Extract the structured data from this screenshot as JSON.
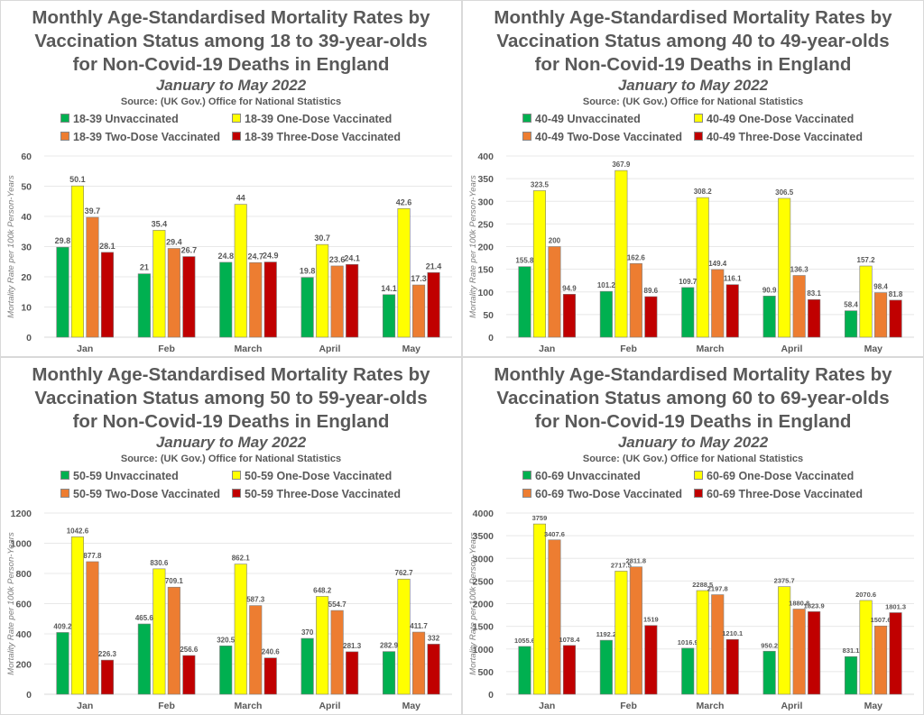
{
  "page": {
    "subtitle": "January to May 2022",
    "source": "Source: (UK Gov.) Office for National Statistics",
    "colors": {
      "unvaccinated": "#00b050",
      "one_dose": "#ffff00",
      "two_dose": "#ed7d31",
      "three_dose": "#c00000",
      "text": "#595959",
      "grid": "#e8e8e8"
    }
  },
  "chart_data": [
    {
      "type": "bar",
      "title": "Monthly Age-Standardised Mortality Rates by Vaccination Status among 18 to 39-year-olds for Non-Covid-19 Deaths in England",
      "title_lines": [
        "Monthly Age-Standardised Mortality Rates by",
        "Vaccination Status among 18 to 39-year-olds",
        "for Non-Covid-19 Deaths in England"
      ],
      "subtitle": "January to May 2022",
      "source": "Source: (UK Gov.) Office for National Statistics",
      "xlabel": "",
      "ylabel": "Mortality Rate per 100k Person-Years",
      "ylim": [
        0,
        60
      ],
      "yticks": [
        0,
        10,
        20,
        30,
        40,
        50,
        60
      ],
      "grid": true,
      "legend_position": "top",
      "categories": [
        "Jan",
        "Feb",
        "March",
        "April",
        "May"
      ],
      "series": [
        {
          "name": "18-39 Unvaccinated",
          "color": "#00b050",
          "values": [
            29.8,
            21,
            24.8,
            19.8,
            14.1
          ]
        },
        {
          "name": "18-39 One-Dose Vaccinated",
          "color": "#ffff00",
          "values": [
            50.1,
            35.4,
            44,
            30.7,
            42.6
          ]
        },
        {
          "name": "18-39 Two-Dose Vaccinated",
          "color": "#ed7d31",
          "values": [
            39.7,
            29.4,
            24.7,
            23.6,
            17.3
          ]
        },
        {
          "name": "18-39 Three-Dose Vaccinated",
          "color": "#c00000",
          "values": [
            28.1,
            26.7,
            24.9,
            24.1,
            21.4
          ]
        }
      ]
    },
    {
      "type": "bar",
      "title": "Monthly Age-Standardised Mortality Rates by Vaccination Status among 40 to 49-year-olds for Non-Covid-19 Deaths in England",
      "title_lines": [
        "Monthly Age-Standardised Mortality Rates by",
        "Vaccination Status among 40 to 49-year-olds",
        "for Non-Covid-19 Deaths in England"
      ],
      "subtitle": "January to May 2022",
      "source": "Source: (UK Gov.) Office for National Statistics",
      "xlabel": "",
      "ylabel": "Mortality Rate per 100k Person-Years",
      "ylim": [
        0,
        400
      ],
      "yticks": [
        0,
        50,
        100,
        150,
        200,
        250,
        300,
        350,
        400
      ],
      "grid": true,
      "legend_position": "top",
      "categories": [
        "Jan",
        "Feb",
        "March",
        "April",
        "May"
      ],
      "series": [
        {
          "name": "40-49 Unvaccinated",
          "color": "#00b050",
          "values": [
            155.8,
            101.2,
            109.7,
            90.9,
            58.4
          ]
        },
        {
          "name": "40-49 One-Dose Vaccinated",
          "color": "#ffff00",
          "values": [
            323.5,
            367.9,
            308.2,
            306.5,
            157.2
          ]
        },
        {
          "name": "40-49 Two-Dose Vaccinated",
          "color": "#ed7d31",
          "values": [
            200,
            162.6,
            149.4,
            136.3,
            98.4
          ]
        },
        {
          "name": "40-49 Three-Dose Vaccinated",
          "color": "#c00000",
          "values": [
            94.9,
            89.6,
            116.1,
            83.1,
            81.8
          ]
        }
      ]
    },
    {
      "type": "bar",
      "title": "Monthly Age-Standardised Mortality Rates by Vaccination Status among 50 to 59-year-olds for Non-Covid-19 Deaths in England",
      "title_lines": [
        "Monthly Age-Standardised Mortality Rates by",
        "Vaccination Status among 50 to 59-year-olds",
        "for Non-Covid-19 Deaths in England"
      ],
      "subtitle": "January to May 2022",
      "source": "Source: (UK Gov.) Office for National Statistics",
      "xlabel": "",
      "ylabel": "Mortality Rate per 100k Person-Years",
      "ylim": [
        0,
        1200
      ],
      "yticks": [
        0,
        200,
        400,
        600,
        800,
        1000,
        1200
      ],
      "grid": true,
      "legend_position": "top",
      "categories": [
        "Jan",
        "Feb",
        "March",
        "April",
        "May"
      ],
      "series": [
        {
          "name": "50-59 Unvaccinated",
          "color": "#00b050",
          "values": [
            409.2,
            465.6,
            320.5,
            370,
            282.9
          ]
        },
        {
          "name": "50-59 One-Dose Vaccinated",
          "color": "#ffff00",
          "values": [
            1042.6,
            830.6,
            862.1,
            648.2,
            762.7
          ]
        },
        {
          "name": "50-59 Two-Dose Vaccinated",
          "color": "#ed7d31",
          "values": [
            877.8,
            709.1,
            587.3,
            554.7,
            411.7
          ]
        },
        {
          "name": "50-59 Three-Dose Vaccinated",
          "color": "#c00000",
          "values": [
            226.3,
            256.6,
            240.6,
            281.3,
            332
          ]
        }
      ]
    },
    {
      "type": "bar",
      "title": "Monthly Age-Standardised Mortality Rates by Vaccination Status among 60 to 69-year-olds for Non-Covid-19 Deaths in England",
      "title_lines": [
        "Monthly Age-Standardised Mortality Rates by",
        "Vaccination Status among 60 to 69-year-olds",
        "for Non-Covid-19 Deaths in England"
      ],
      "subtitle": "January to May 2022",
      "source": "Source: (UK Gov.) Office for National Statistics",
      "xlabel": "",
      "ylabel": "Mortality Rate per 100k Person-Years",
      "ylim": [
        0,
        4000
      ],
      "yticks": [
        0,
        500,
        1000,
        1500,
        2000,
        2500,
        3000,
        3500,
        4000
      ],
      "grid": true,
      "legend_position": "top",
      "categories": [
        "Jan",
        "Feb",
        "March",
        "April",
        "May"
      ],
      "series": [
        {
          "name": "60-69 Unvaccinated",
          "color": "#00b050",
          "values": [
            1055.6,
            1192.2,
            1016.9,
            950.2,
            831.1
          ]
        },
        {
          "name": "60-69 One-Dose Vaccinated",
          "color": "#ffff00",
          "values": [
            3759,
            2717.5,
            2288.5,
            2375.7,
            2070.6
          ]
        },
        {
          "name": "60-69 Two-Dose Vaccinated",
          "color": "#ed7d31",
          "values": [
            3407.6,
            2811.8,
            2197.8,
            1880.8,
            1507.6
          ]
        },
        {
          "name": "60-69 Three-Dose Vaccinated",
          "color": "#c00000",
          "values": [
            1078.4,
            1519,
            1210.1,
            1823.9,
            1801.3
          ]
        }
      ]
    }
  ]
}
